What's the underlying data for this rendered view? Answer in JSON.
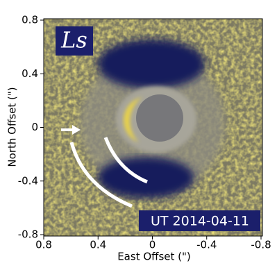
{
  "chart_data": {
    "type": "image",
    "xlabel": "East Offset (\")",
    "ylabel": "North Offset (\")",
    "xlim": [
      0.8,
      -0.8
    ],
    "ylim": [
      -0.8,
      0.8
    ],
    "xticks": [
      0.8,
      0.4,
      0,
      -0.4,
      -0.8
    ],
    "yticks": [
      0.8,
      0.4,
      0,
      -0.4,
      -0.8
    ],
    "annotations": [
      "Ls",
      "UT 2014-04-11"
    ]
  }
}
